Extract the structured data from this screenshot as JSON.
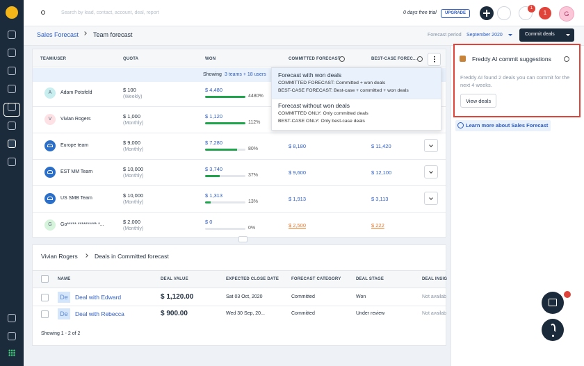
{
  "topbar": {
    "search_placeholder": "Search by lead, contact, account, deal, report",
    "trial": "0 days free trial",
    "upgrade": "UPGRADE",
    "notification_count": "1",
    "alert_count": "1",
    "avatar": "G"
  },
  "header": {
    "breadcrumb": [
      "Sales Forecast",
      "Team forecast"
    ],
    "period_label": "Forecast period",
    "period": "September 2020",
    "commit_button": "Commit deals"
  },
  "forecast_table": {
    "columns": [
      "TEAM/USER",
      "QUOTA",
      "WON",
      "COMMITTED FORECAST",
      "BEST-CASE FOREC..."
    ],
    "banner": {
      "prefix": "Showing",
      "link": "3 teams + 18 users"
    },
    "rows": [
      {
        "avatar": "A",
        "avatar_color": "#c8eef0",
        "name": "Adam Potsfeld",
        "quota": "$ 100",
        "period": "(Weekly)",
        "won": "$ 4,480",
        "won_pct": {
          "value": 4480,
          "label": "4480%"
        }
      },
      {
        "avatar": "V",
        "avatar_color": "#fde1e4",
        "name": "Vivian Rogers",
        "quota": "$ 1,000",
        "period": "(Monthly)",
        "won": "$ 1,120",
        "won_pct": {
          "value": 112,
          "label": "112%"
        }
      },
      {
        "name": "Europe team",
        "quota": "$ 9,000",
        "period": "(Monthly)",
        "won": "$ 7,280",
        "won_pct": {
          "value": 80,
          "label": "80%"
        },
        "committed": "$ 8,180",
        "best_case": "$ 11,420"
      },
      {
        "name": "EST MM Team",
        "quota": "$ 10,000",
        "period": "(Monthly)",
        "won": "$ 3,740",
        "won_pct": {
          "value": 37,
          "label": "37%"
        },
        "committed": "$ 9,600",
        "best_case": "$ 12,100"
      },
      {
        "name": "US SMB Team",
        "quota": "$ 10,000",
        "period": "(Monthly)",
        "won": "$ 1,313",
        "won_pct": {
          "value": 13,
          "label": "13%"
        },
        "committed": "$ 1,913",
        "best_case": "$ 3,113"
      },
      {
        "avatar": "G",
        "avatar_color": "#d6f3dc",
        "name": "Go***** ********** *...",
        "quota": "$ 2,000",
        "period": "(Monthly)",
        "won": "$ 0",
        "won_pct": {
          "value": 0,
          "label": "0%"
        },
        "committed": "$ 2,500",
        "best_case": "$ 222",
        "forecast_color": "#e8772e"
      }
    ]
  },
  "dropdown": [
    {
      "title": "Forecast with won deals",
      "lines": [
        "COMMITTED FORECAST: Committed + won deals",
        "BEST-CASE FORECAST: Best-case + committed + won deals"
      ]
    },
    {
      "title": "Forecast without won deals",
      "lines": [
        "COMMITTED ONLY: Only committed deals",
        "BEST-CASE ONLY: Only best-case deals"
      ]
    }
  ],
  "deals": {
    "breadcrumb": [
      "Vivian Rogers",
      "Deals in Committed forecast"
    ],
    "columns": [
      "NAME",
      "DEAL VALUE",
      "EXPECTED CLOSE DATE",
      "FORECAST CATEGORY",
      "DEAL STAGE",
      "DEAL INSIG"
    ],
    "rows": [
      {
        "icon": "De",
        "name": "Deal with Edward",
        "value": "$ 1,120.00",
        "close": "Sat 03 Oct, 2020",
        "category": "Committed",
        "stage": "Won",
        "insight": "Not availab"
      },
      {
        "icon": "De",
        "name": "Deal with Rebecca",
        "value": "$ 900.00",
        "close": "Wed 30 Sep, 20...",
        "category": "Committed",
        "stage": "Under review",
        "insight": "Not availab"
      }
    ],
    "footer": "Showing 1 - 2 of 2"
  },
  "freddy": {
    "title": "Freddy AI commit suggestions",
    "text": "Freddy AI found 2 deals you can commit for the next 4 weeks.",
    "button": "View deals",
    "learn_more": "Learn more about Sales Forecast"
  }
}
